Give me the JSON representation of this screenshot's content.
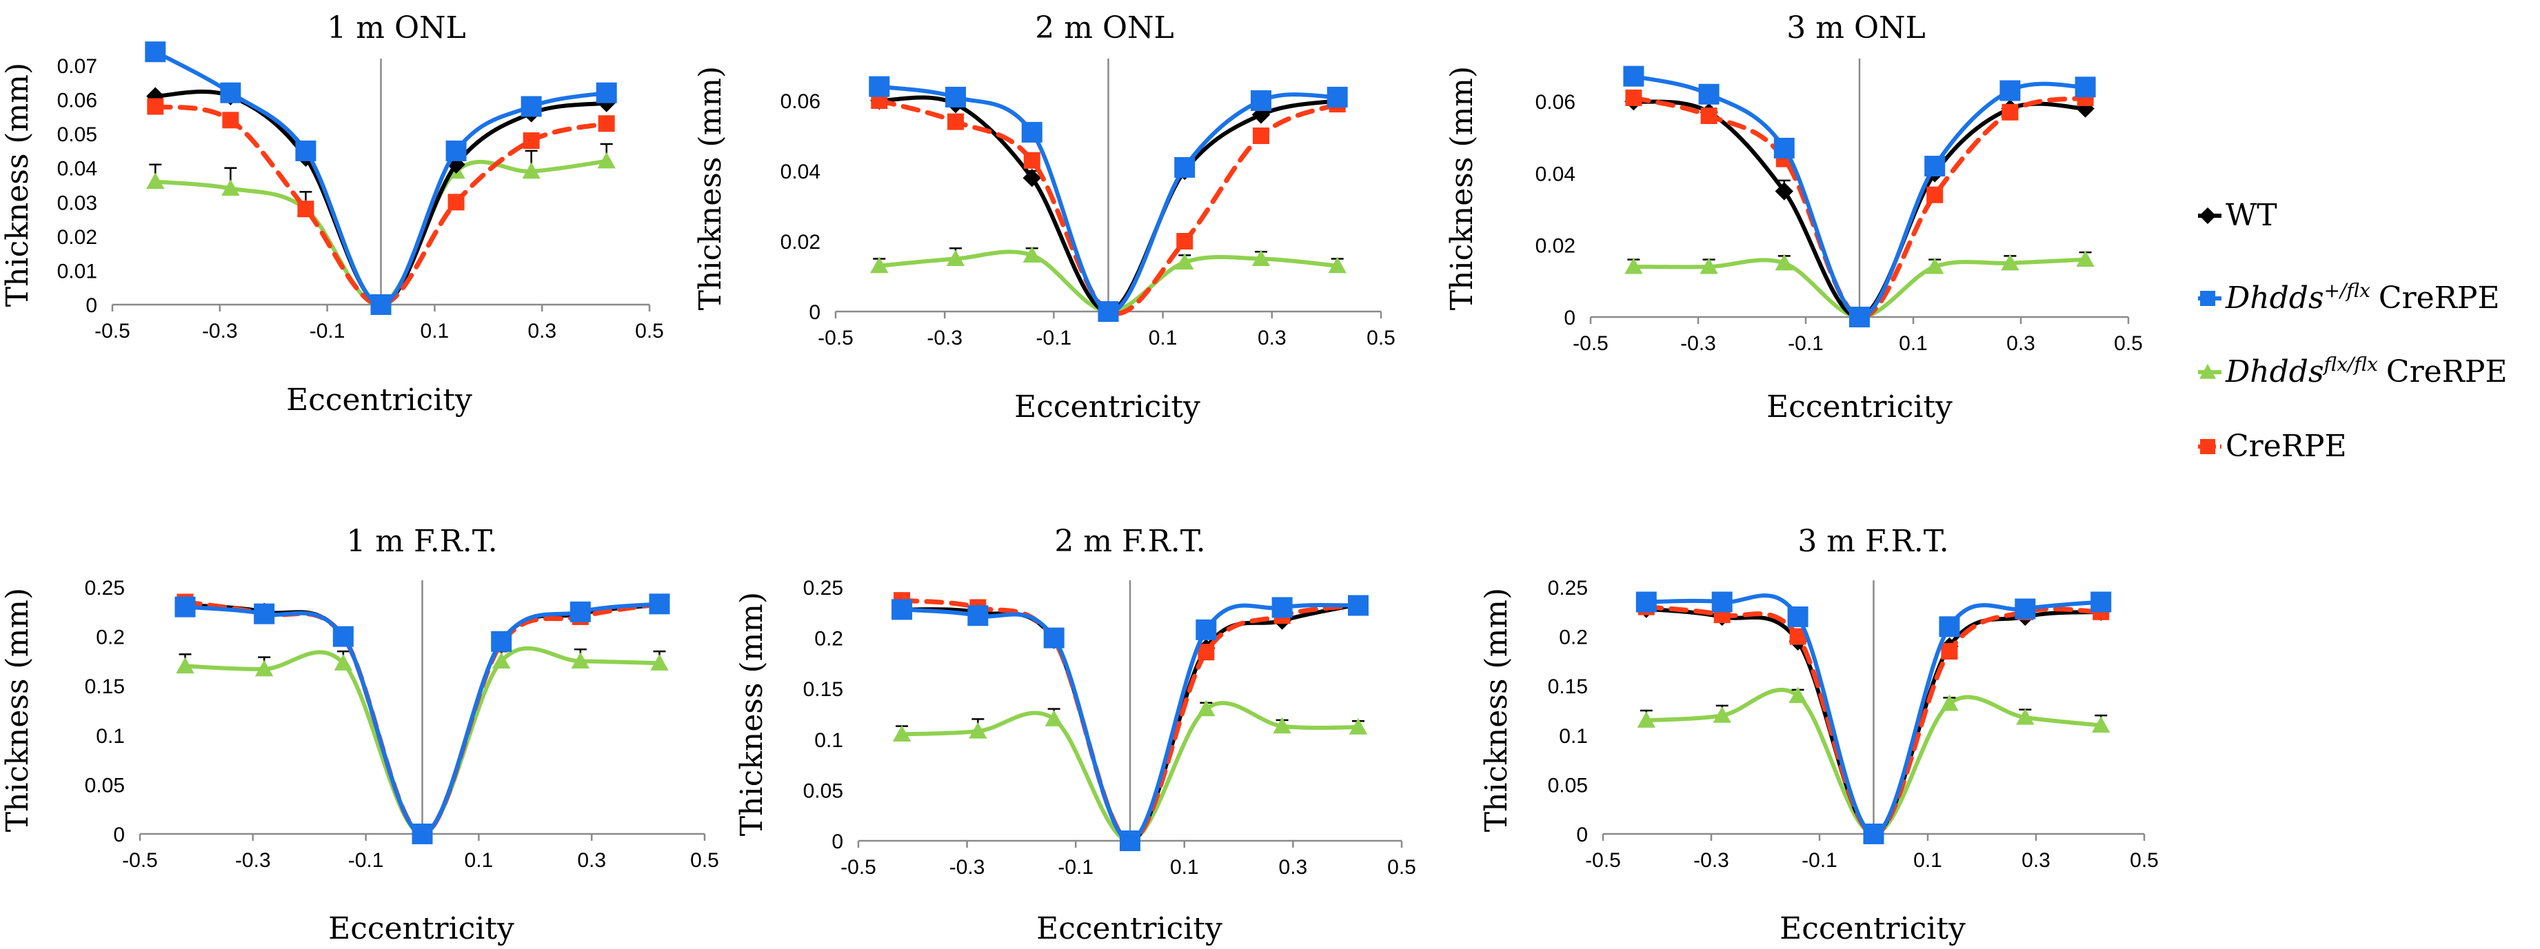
{
  "chart_data": [
    {
      "type": "line",
      "title": "1 m ONL",
      "xlabel": "Eccentricity",
      "ylabel": "Thickness (mm)",
      "xlim": [
        -0.5,
        0.5
      ],
      "ylim": [
        0,
        0.07
      ],
      "xticks": [
        -0.5,
        -0.3,
        -0.1,
        0.1,
        0.3,
        0.5
      ],
      "xtick_labels": [
        "-0.5",
        "-0.3",
        "-0.1",
        "0.1",
        "0.3",
        "0.5"
      ],
      "yticks": [
        0,
        0.01,
        0.02,
        0.03,
        0.04,
        0.05,
        0.06,
        0.07
      ],
      "ytick_labels": [
        "0",
        "0.01",
        "0.02",
        "0.03",
        "0.04",
        "0.05",
        "0.06",
        "0.07"
      ],
      "x": [
        -0.42,
        -0.28,
        -0.14,
        0,
        0.14,
        0.28,
        0.42
      ],
      "series": [
        {
          "name": "WT",
          "values": [
            0.061,
            0.061,
            0.043,
            0,
            0.041,
            0.056,
            0.059
          ],
          "errors": [
            0,
            0,
            0.002,
            0,
            0,
            0,
            0
          ]
        },
        {
          "name": "Dhdds +/flx CreRPE",
          "values": [
            0.074,
            0.062,
            0.045,
            0,
            0.045,
            0.058,
            0.062
          ],
          "errors": [
            0,
            0,
            0,
            0,
            0,
            0,
            0
          ]
        },
        {
          "name": "Dhdds flx/flx CreRPE",
          "values": [
            0.036,
            0.034,
            0.028,
            0,
            0.039,
            0.039,
            0.042
          ],
          "errors": [
            0.005,
            0.006,
            0.005,
            0,
            0.004,
            0.006,
            0.005
          ]
        },
        {
          "name": "CreRPE",
          "values": [
            0.058,
            0.054,
            0.028,
            0,
            0.03,
            0.048,
            0.053
          ],
          "errors": [
            0,
            0,
            0,
            0,
            0,
            0,
            0
          ]
        }
      ]
    },
    {
      "type": "line",
      "title": "2 m ONL",
      "xlabel": "Eccentricity",
      "ylabel": "Thickness (mm)",
      "xlim": [
        -0.5,
        0.5
      ],
      "ylim": [
        0,
        0.07
      ],
      "xticks": [
        -0.5,
        -0.3,
        -0.1,
        0.1,
        0.3,
        0.5
      ],
      "xtick_labels": [
        "-0.5",
        "-0.3",
        "-0.1",
        "0.1",
        "0.3",
        "0.5"
      ],
      "yticks": [
        0,
        0.02,
        0.04,
        0.06
      ],
      "ytick_labels": [
        "0",
        "0.02",
        "0.04",
        "0.06"
      ],
      "x": [
        -0.42,
        -0.28,
        -0.14,
        0,
        0.14,
        0.28,
        0.42
      ],
      "series": [
        {
          "name": "WT",
          "values": [
            0.06,
            0.059,
            0.038,
            0,
            0.04,
            0.056,
            0.06
          ],
          "errors": [
            0,
            0,
            0.002,
            0,
            0,
            0,
            0
          ]
        },
        {
          "name": "Dhdds +/flx CreRPE",
          "values": [
            0.064,
            0.061,
            0.051,
            0,
            0.041,
            0.06,
            0.061
          ],
          "errors": [
            0,
            0,
            0,
            0,
            0,
            0,
            0
          ]
        },
        {
          "name": "Dhdds flx/flx CreRPE",
          "values": [
            0.013,
            0.015,
            0.016,
            0,
            0.014,
            0.015,
            0.013
          ],
          "errors": [
            0.002,
            0.003,
            0.002,
            0,
            0.002,
            0.002,
            0.002
          ]
        },
        {
          "name": "CreRPE",
          "values": [
            0.06,
            0.054,
            0.043,
            0,
            0.02,
            0.05,
            0.059
          ],
          "errors": [
            0,
            0,
            0,
            0,
            0,
            0,
            0
          ]
        }
      ]
    },
    {
      "type": "line",
      "title": "3 m ONL",
      "xlabel": "Eccentricity",
      "ylabel": "Thickness (mm)",
      "xlim": [
        -0.5,
        0.5
      ],
      "ylim": [
        0,
        0.07
      ],
      "xticks": [
        -0.5,
        -0.3,
        -0.1,
        0.1,
        0.3,
        0.5
      ],
      "xtick_labels": [
        "-0.5",
        "-0.3",
        "-0.1",
        "0.1",
        "0.3",
        "0.5"
      ],
      "yticks": [
        0,
        0.02,
        0.04,
        0.06
      ],
      "ytick_labels": [
        "0",
        "0.02",
        "0.04",
        "0.06"
      ],
      "x": [
        -0.42,
        -0.28,
        -0.14,
        0,
        0.14,
        0.28,
        0.42
      ],
      "series": [
        {
          "name": "WT",
          "values": [
            0.06,
            0.057,
            0.035,
            0,
            0.04,
            0.058,
            0.058
          ],
          "errors": [
            0,
            0,
            0.003,
            0,
            0,
            0,
            0.002
          ]
        },
        {
          "name": "Dhdds +/flx CreRPE",
          "values": [
            0.067,
            0.062,
            0.047,
            0,
            0.042,
            0.063,
            0.064
          ],
          "errors": [
            0,
            0,
            0,
            0,
            0,
            0,
            0
          ]
        },
        {
          "name": "Dhdds flx/flx CreRPE",
          "values": [
            0.014,
            0.014,
            0.015,
            0,
            0.014,
            0.015,
            0.016
          ],
          "errors": [
            0.002,
            0.002,
            0.002,
            0,
            0.002,
            0.002,
            0.002
          ]
        },
        {
          "name": "CreRPE",
          "values": [
            0.061,
            0.056,
            0.044,
            0,
            0.034,
            0.057,
            0.061
          ],
          "errors": [
            0,
            0,
            0,
            0,
            0,
            0,
            0
          ]
        }
      ]
    },
    {
      "type": "line",
      "title": "1 m F.R.T.",
      "xlabel": "Eccentricity",
      "ylabel": "Thickness (mm)",
      "xlim": [
        -0.5,
        0.5
      ],
      "ylim": [
        0,
        0.25
      ],
      "xticks": [
        -0.5,
        -0.3,
        -0.1,
        0.1,
        0.3,
        0.5
      ],
      "xtick_labels": [
        "-0.5",
        "-0.3",
        "-0.1",
        "0.1",
        "0.3",
        "0.5"
      ],
      "yticks": [
        0,
        0.05,
        0.1,
        0.15,
        0.2,
        0.25
      ],
      "ytick_labels": [
        "0",
        "0.05",
        "0.1",
        "0.15",
        "0.2",
        "0.25"
      ],
      "x": [
        -0.42,
        -0.28,
        -0.14,
        0,
        0.14,
        0.28,
        0.42
      ],
      "series": [
        {
          "name": "WT",
          "values": [
            0.232,
            0.225,
            0.2,
            0,
            0.195,
            0.223,
            0.232
          ],
          "errors": [
            0,
            0,
            0,
            0,
            0,
            0,
            0
          ]
        },
        {
          "name": "Dhdds +/flx CreRPE",
          "values": [
            0.23,
            0.223,
            0.2,
            0,
            0.195,
            0.225,
            0.233
          ],
          "errors": [
            0,
            0,
            0,
            0,
            0,
            0,
            0
          ]
        },
        {
          "name": "Dhdds flx/flx CreRPE",
          "values": [
            0.17,
            0.167,
            0.173,
            0,
            0.175,
            0.175,
            0.173
          ],
          "errors": [
            0.012,
            0.012,
            0.012,
            0,
            0.01,
            0.012,
            0.012
          ]
        },
        {
          "name": "CreRPE",
          "values": [
            0.235,
            0.223,
            0.2,
            0,
            0.193,
            0.22,
            0.233
          ],
          "errors": [
            0,
            0,
            0,
            0,
            0,
            0,
            0
          ]
        }
      ]
    },
    {
      "type": "line",
      "title": "2 m F.R.T.",
      "xlabel": "Eccentricity",
      "ylabel": "Thickness (mm)",
      "xlim": [
        -0.5,
        0.5
      ],
      "ylim": [
        0,
        0.25
      ],
      "xticks": [
        -0.5,
        -0.3,
        -0.1,
        0.1,
        0.3,
        0.5
      ],
      "xtick_labels": [
        "-0.5",
        "-0.3",
        "-0.1",
        "0.1",
        "0.3",
        "0.5"
      ],
      "yticks": [
        0,
        0.05,
        0.1,
        0.15,
        0.2,
        0.25
      ],
      "ytick_labels": [
        "0",
        "0.05",
        "0.1",
        "0.15",
        "0.2",
        "0.25"
      ],
      "x": [
        -0.42,
        -0.28,
        -0.14,
        0,
        0.14,
        0.28,
        0.42
      ],
      "series": [
        {
          "name": "WT",
          "values": [
            0.228,
            0.225,
            0.198,
            0,
            0.19,
            0.217,
            0.233
          ],
          "errors": [
            0,
            0,
            0,
            0,
            0,
            0,
            0
          ]
        },
        {
          "name": "Dhdds +/flx CreRPE",
          "values": [
            0.228,
            0.222,
            0.2,
            0,
            0.208,
            0.23,
            0.232
          ],
          "errors": [
            0,
            0,
            0,
            0,
            0,
            0,
            0
          ]
        },
        {
          "name": "Dhdds flx/flx CreRPE",
          "values": [
            0.105,
            0.108,
            0.12,
            0,
            0.13,
            0.113,
            0.112
          ],
          "errors": [
            0.008,
            0.012,
            0.01,
            0,
            0.006,
            0.006,
            0.006
          ]
        },
        {
          "name": "CreRPE",
          "values": [
            0.237,
            0.23,
            0.198,
            0,
            0.186,
            0.222,
            0.232
          ],
          "errors": [
            0,
            0,
            0,
            0,
            0,
            0,
            0
          ]
        }
      ]
    },
    {
      "type": "line",
      "title": "3 m F.R.T.",
      "xlabel": "Eccentricity",
      "ylabel": "Thickness (mm)",
      "xlim": [
        -0.5,
        0.5
      ],
      "ylim": [
        0,
        0.25
      ],
      "xticks": [
        -0.5,
        -0.3,
        -0.1,
        0.1,
        0.3,
        0.5
      ],
      "xtick_labels": [
        "-0.5",
        "-0.3",
        "-0.1",
        "0.1",
        "0.3",
        "0.5"
      ],
      "yticks": [
        0,
        0.05,
        0.1,
        0.15,
        0.2,
        0.25
      ],
      "ytick_labels": [
        "0",
        "0.05",
        "0.1",
        "0.15",
        "0.2",
        "0.25"
      ],
      "x": [
        -0.42,
        -0.28,
        -0.14,
        0,
        0.14,
        0.28,
        0.42
      ],
      "series": [
        {
          "name": "WT",
          "values": [
            0.228,
            0.22,
            0.195,
            0,
            0.19,
            0.22,
            0.225
          ],
          "errors": [
            0,
            0,
            0,
            0,
            0,
            0,
            0
          ]
        },
        {
          "name": "Dhdds +/flx CreRPE",
          "values": [
            0.235,
            0.235,
            0.22,
            0,
            0.21,
            0.228,
            0.235
          ],
          "errors": [
            0,
            0,
            0,
            0,
            0,
            0,
            0
          ]
        },
        {
          "name": "Dhdds flx/flx CreRPE",
          "values": [
            0.115,
            0.12,
            0.14,
            0,
            0.132,
            0.118,
            0.11
          ],
          "errors": [
            0.01,
            0.01,
            0.006,
            0,
            0.006,
            0.008,
            0.01
          ]
        },
        {
          "name": "CreRPE",
          "values": [
            0.23,
            0.222,
            0.2,
            0,
            0.185,
            0.225,
            0.225
          ],
          "errors": [
            0,
            0,
            0,
            0,
            0,
            0,
            0
          ]
        }
      ]
    }
  ],
  "legend": {
    "items": [
      {
        "name": "WT",
        "color": "#000000",
        "marker": "diamond",
        "dashed": false,
        "italic": "",
        "sup": "",
        "text": "WT"
      },
      {
        "name": "Dhdds +/flx CreRPE",
        "color": "#1a73e8",
        "marker": "square",
        "dashed": false,
        "italic": "Dhdds",
        "sup": "+/flx",
        "text": "CreRPE"
      },
      {
        "name": "Dhdds flx/flx CreRPE",
        "color": "#8fd14f",
        "marker": "triangle",
        "dashed": false,
        "italic": "Dhdds",
        "sup": "flx/flx",
        "text": "CreRPE"
      },
      {
        "name": "CreRPE",
        "color": "#ff3b16",
        "marker": "square",
        "dashed": true,
        "italic": "",
        "sup": "",
        "text": "CreRPE"
      }
    ]
  }
}
